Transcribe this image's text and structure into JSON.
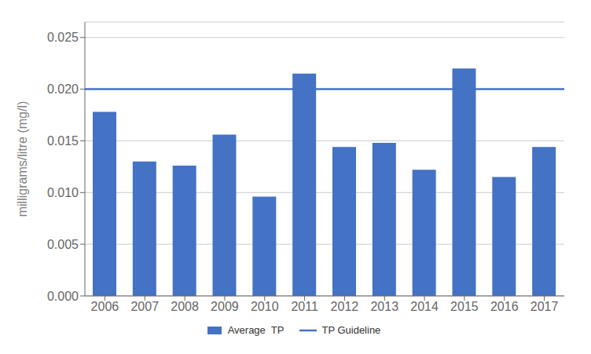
{
  "chart_data": {
    "type": "bar",
    "categories": [
      "2006",
      "2007",
      "2008",
      "2009",
      "2010",
      "2011",
      "2012",
      "2013",
      "2014",
      "2015",
      "2016",
      "2017"
    ],
    "series": [
      {
        "name": "Average  TP",
        "color": "#4472C4",
        "values": [
          0.0178,
          0.013,
          0.0126,
          0.0156,
          0.0096,
          0.0215,
          0.0144,
          0.0148,
          0.0122,
          0.022,
          0.0115,
          0.0144
        ]
      }
    ],
    "guideline": {
      "name": "TP Guideline",
      "color": "#4472C4",
      "value": 0.02
    },
    "ylabel": "milligrams/litre (mg/l)",
    "ylim": [
      0,
      0.0265
    ],
    "yticks": [
      {
        "value": 0,
        "label": "0.000"
      },
      {
        "value": 0.005,
        "label": "0.005"
      },
      {
        "value": 0.01,
        "label": "0.010"
      },
      {
        "value": 0.015,
        "label": "0.015"
      },
      {
        "value": 0.02,
        "label": "0.020"
      },
      {
        "value": 0.025,
        "label": "0.025"
      }
    ],
    "grid": true,
    "legend": "bottom"
  }
}
